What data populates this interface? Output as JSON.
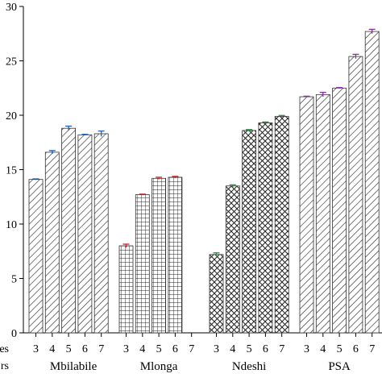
{
  "chart_data": {
    "type": "bar",
    "ylim": [
      0,
      30
    ],
    "yticks": [
      0,
      5,
      10,
      15,
      20,
      25,
      30
    ],
    "grid": false,
    "row_labels": [
      "es",
      "rs"
    ],
    "groups": [
      {
        "name": "Mbilabile",
        "pattern": "diagonal",
        "error_color": "#1f5fbf",
        "categories": [
          "3",
          "4",
          "5",
          "6",
          "7"
        ],
        "values": [
          14.1,
          16.6,
          18.8,
          18.2,
          18.3
        ],
        "errors": [
          0.05,
          0.15,
          0.2,
          0.05,
          0.25
        ]
      },
      {
        "name": "Mlonga",
        "pattern": "grid",
        "error_color": "#cc2222",
        "categories": [
          "3",
          "4",
          "5",
          "6",
          "7"
        ],
        "values": [
          8.0,
          12.7,
          14.2,
          14.3,
          null
        ],
        "errors": [
          0.15,
          0.05,
          0.1,
          0.08,
          null
        ]
      },
      {
        "name": "Ndeshi",
        "pattern": "crosshatch",
        "error_color": "#1f8f3a",
        "categories": [
          "3",
          "4",
          "5",
          "6",
          "7"
        ],
        "values": [
          7.2,
          13.5,
          18.6,
          19.3,
          19.9
        ],
        "errors": [
          0.15,
          0.1,
          0.08,
          0.08,
          0.08
        ]
      },
      {
        "name": "PSA",
        "pattern": "diagonal",
        "error_color": "#8e2bb0",
        "categories": [
          "3",
          "4",
          "5",
          "6",
          "7"
        ],
        "values": [
          21.7,
          21.9,
          22.5,
          25.4,
          27.7
        ],
        "errors": [
          0.05,
          0.2,
          0.05,
          0.2,
          0.2
        ]
      }
    ]
  }
}
